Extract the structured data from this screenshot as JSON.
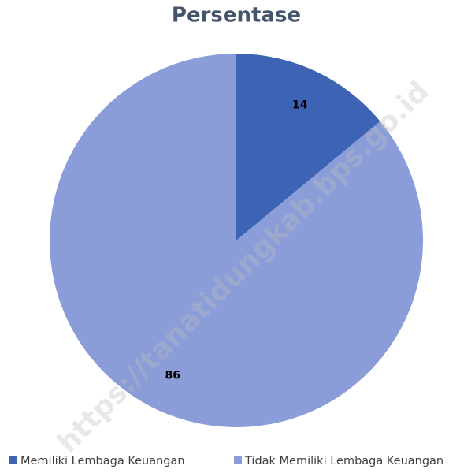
{
  "chart_data": {
    "type": "pie",
    "title": "Persentase",
    "categories": [
      "Memiliki Lembaga Keuangan",
      "Tidak Memiliki Lembaga Keuangan"
    ],
    "values": [
      14,
      86
    ],
    "colors": [
      "#3d63b5",
      "#8a9dd8"
    ],
    "legend": "bottom",
    "watermark": "https://tanatidungkab.bps.go.id"
  }
}
